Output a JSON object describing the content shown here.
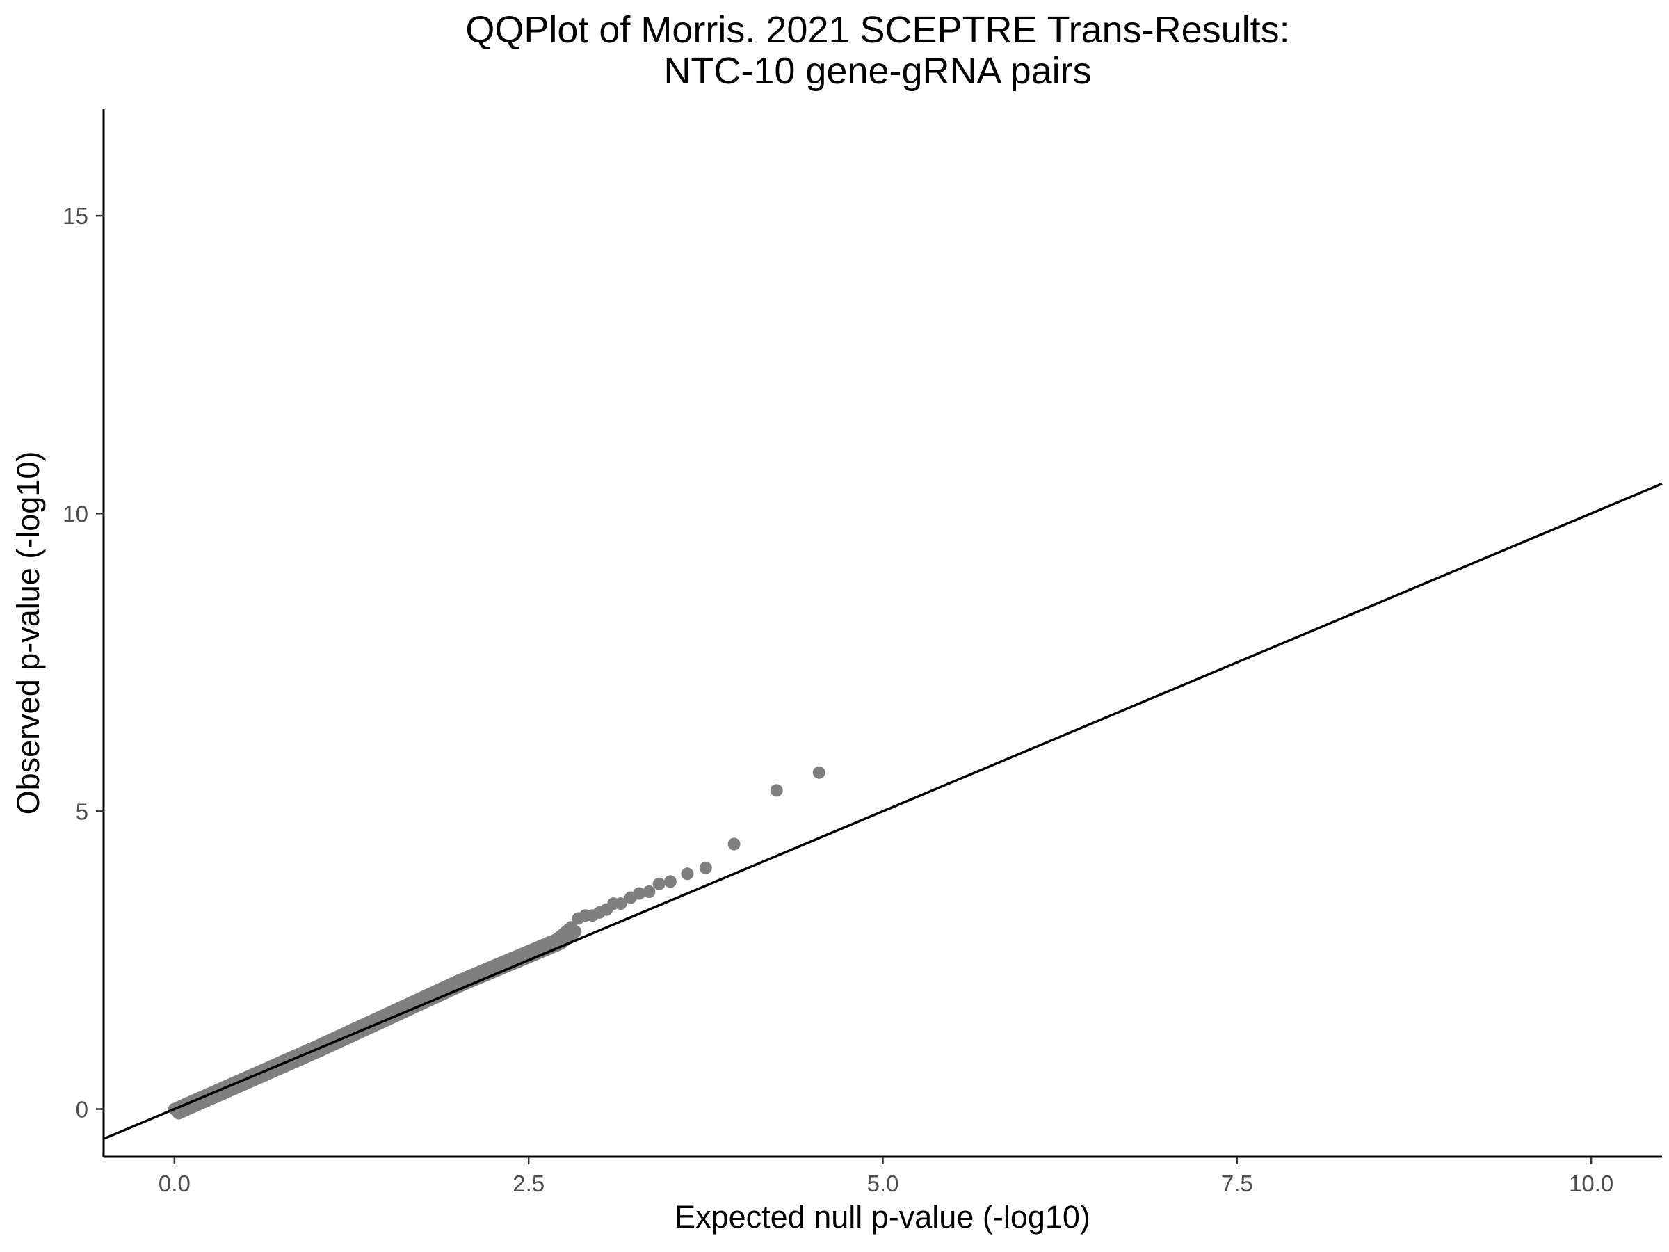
{
  "chart_data": {
    "type": "scatter",
    "title_lines": [
      "QQPlot of Morris. 2021 SCEPTRE Trans-Results:",
      "NTC-10 gene-gRNA pairs"
    ],
    "xlabel": "Expected null p-value (-log10)",
    "ylabel": "Observed p-value (-log10)",
    "xlim": [
      -0.5,
      10.5
    ],
    "ylim": [
      -0.8,
      16.8
    ],
    "x_ticks": [
      0.0,
      2.5,
      5.0,
      7.5,
      10.0
    ],
    "x_tick_labels": [
      "0.0",
      "2.5",
      "5.0",
      "7.5",
      "10.0"
    ],
    "y_ticks": [
      0,
      5,
      10,
      15
    ],
    "y_tick_labels": [
      "0",
      "5",
      "10",
      "15"
    ],
    "grid": false,
    "reference_line": {
      "intercept": 0,
      "slope": 1
    },
    "point_color": "#7f7f7f",
    "line_color": "#000000",
    "outliers": [
      [
        2.85,
        3.2
      ],
      [
        2.9,
        3.25
      ],
      [
        2.95,
        3.25
      ],
      [
        3.0,
        3.3
      ],
      [
        3.05,
        3.35
      ],
      [
        3.1,
        3.45
      ],
      [
        3.15,
        3.45
      ],
      [
        3.22,
        3.55
      ],
      [
        3.28,
        3.62
      ],
      [
        3.35,
        3.65
      ],
      [
        3.42,
        3.78
      ],
      [
        3.5,
        3.82
      ],
      [
        3.62,
        3.95
      ],
      [
        3.75,
        4.05
      ],
      [
        3.95,
        4.45
      ],
      [
        4.25,
        5.35
      ],
      [
        4.55,
        5.65
      ]
    ],
    "bulk": {
      "description_points": "dense band along the diagonal",
      "x_range": [
        0.0,
        2.8
      ],
      "knots": [
        [
          0.0,
          0.0
        ],
        [
          1.0,
          1.05
        ],
        [
          1.5,
          1.6
        ],
        [
          2.0,
          2.15
        ],
        [
          2.5,
          2.65
        ],
        [
          2.7,
          2.85
        ],
        [
          2.8,
          3.05
        ]
      ]
    }
  }
}
